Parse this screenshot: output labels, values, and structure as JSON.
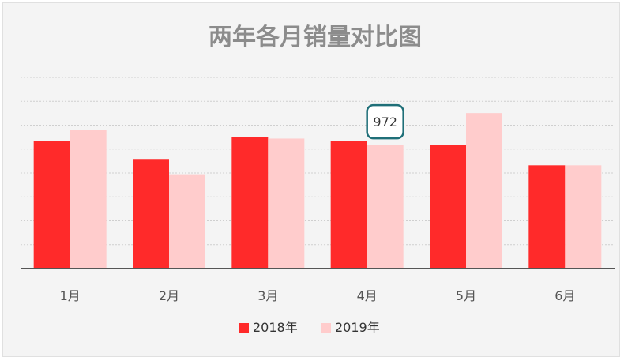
{
  "chart_data": {
    "type": "bar",
    "title": "两年各月销量对比图",
    "categories": [
      "1月",
      "2月",
      "3月",
      "4月",
      "5月",
      "6月"
    ],
    "series": [
      {
        "name": "2018年",
        "values": [
          1000,
          860,
          1030,
          1000,
          970,
          810
        ]
      },
      {
        "name": "2019年",
        "values": [
          1090,
          740,
          1020,
          972,
          1220,
          810
        ]
      }
    ],
    "ylim": [
      0,
      1500
    ],
    "grid": true,
    "legend_position": "bottom",
    "data_labels": [
      {
        "series": "2019年",
        "category": "4月",
        "text": "972"
      }
    ],
    "colors": {
      "2018年": "#ff2a2a",
      "2019年": "#ffcccc",
      "title": "#8c8c8c",
      "grid": "#cfcfcf",
      "axis": "#555555",
      "label_border": "#1f6f78"
    }
  }
}
